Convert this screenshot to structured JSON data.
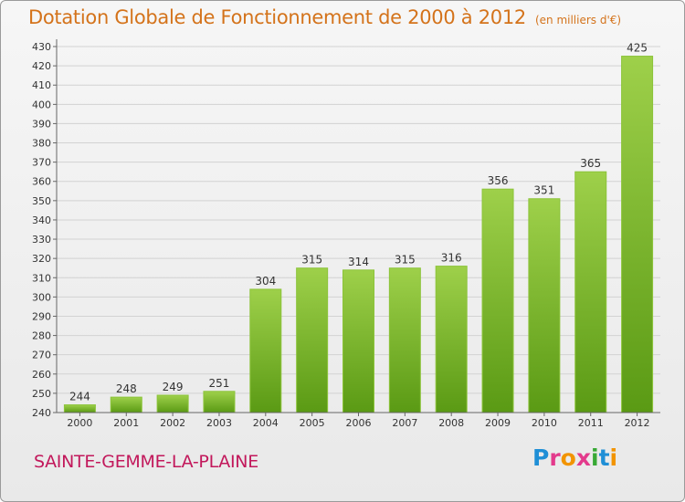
{
  "header": {
    "title": "Dotation Globale de Fonctionnement de 2000 à 2012",
    "subtitle": "(en milliers d'€)"
  },
  "footer": {
    "commune": "SAINTE-GEMME-LA-PLAINE",
    "logo_text": "Proxiti"
  },
  "colors": {
    "bar_top": "#9ed04a",
    "bar_bottom": "#5a9a14",
    "title": "#d4731b",
    "commune": "#c2185b"
  },
  "chart_data": {
    "type": "bar",
    "title": "Dotation Globale de Fonctionnement de 2000 à 2012",
    "subtitle": "(en milliers d'€)",
    "categories": [
      "2000",
      "2001",
      "2002",
      "2003",
      "2004",
      "2005",
      "2006",
      "2007",
      "2008",
      "2009",
      "2010",
      "2011",
      "2012"
    ],
    "values": [
      244,
      248,
      249,
      251,
      304,
      315,
      314,
      315,
      316,
      356,
      351,
      365,
      425
    ],
    "ylim": [
      240,
      430
    ],
    "ytick_step": 10,
    "grid": true,
    "legend": "none"
  }
}
